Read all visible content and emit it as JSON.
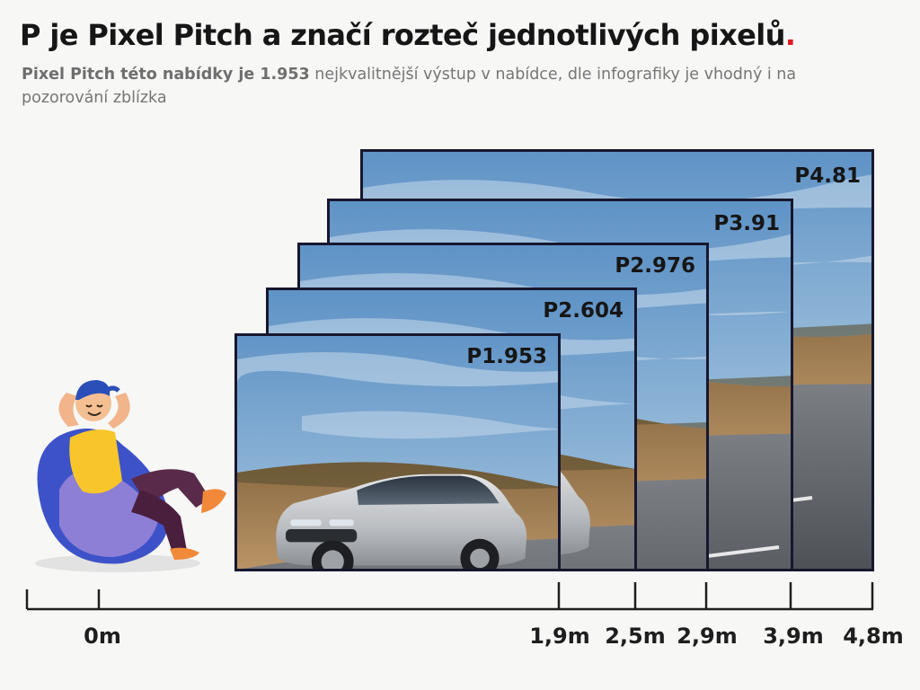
{
  "header": {
    "title_text": "P je Pixel Pitch a značí rozteč jednotlivých pixelů",
    "title_dot": ".",
    "subtitle_bold": "Pixel Pitch této nabídky je 1.953",
    "subtitle_rest": " nejkvalitnější výstup v nabídce, dle infografiky je vhodný i na pozorování zblízka"
  },
  "screens": [
    {
      "label": "P4.81",
      "scene": "car-on-road-photo"
    },
    {
      "label": "P3.91",
      "scene": "car-on-road-photo"
    },
    {
      "label": "P2.976",
      "scene": "car-on-road-photo"
    },
    {
      "label": "P2.604",
      "scene": "car-on-road-photo"
    },
    {
      "label": "P1.953",
      "scene": "car-on-road-photo"
    }
  ],
  "viewer": {
    "illustration": "person-on-beanbag"
  },
  "ruler": {
    "distances": [
      "0m",
      "1,9m",
      "2,5m",
      "2,9m",
      "3,9m",
      "4,8m"
    ]
  },
  "colors": {
    "frame": "#17172e",
    "accent_dot": "#e01b24",
    "sky": "#6f9fcb",
    "road": "#5a5d63"
  }
}
